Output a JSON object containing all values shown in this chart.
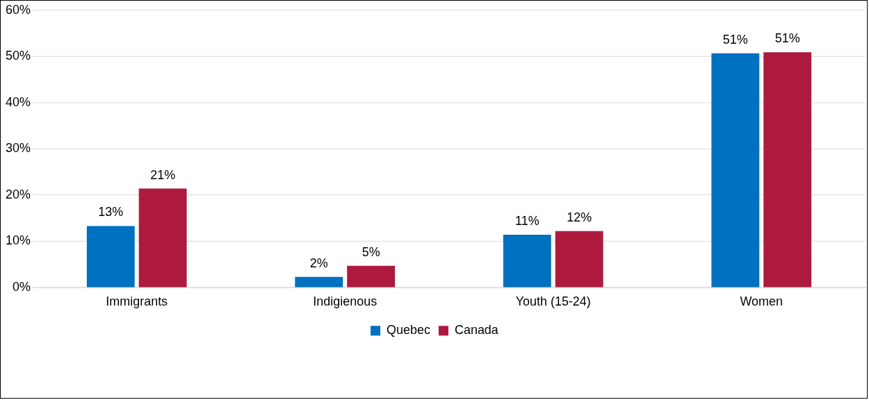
{
  "chart_data": {
    "type": "bar",
    "categories": [
      "Immigrants",
      "Indigienous",
      "Youth (15-24)",
      "Women"
    ],
    "series": [
      {
        "name": "Quebec",
        "color": "#0070c0",
        "values": [
          13.3,
          2.3,
          11.4,
          50.7
        ],
        "value_labels": [
          "13%",
          "2%",
          "11%",
          "51%"
        ]
      },
      {
        "name": "Canada",
        "color": "#ae1a3e",
        "values": [
          21.4,
          4.7,
          12.2,
          50.9
        ],
        "value_labels": [
          "21%",
          "5%",
          "12%",
          "51%"
        ]
      }
    ],
    "ylim": [
      0,
      60
    ],
    "yticks": [
      {
        "value": 0,
        "label": "0%"
      },
      {
        "value": 10,
        "label": "10%"
      },
      {
        "value": 20,
        "label": "20%"
      },
      {
        "value": 30,
        "label": "30%"
      },
      {
        "value": 40,
        "label": "40%"
      },
      {
        "value": 50,
        "label": "50%"
      },
      {
        "value": 60,
        "label": "60%"
      }
    ],
    "grid": "y",
    "legend": "bottom"
  }
}
